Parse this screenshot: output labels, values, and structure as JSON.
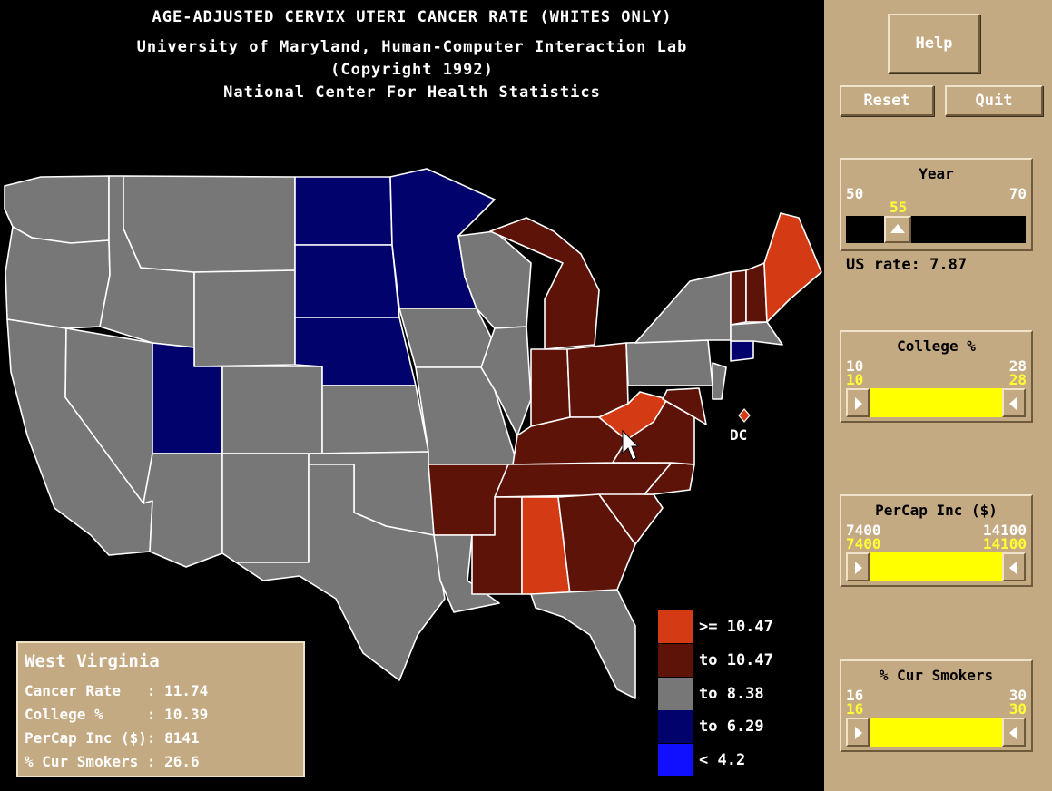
{
  "header": {
    "line1": "AGE-ADJUSTED CERVIX UTERI CANCER RATE (WHITES ONLY)",
    "line2": "University of Maryland, Human-Computer Interaction Lab",
    "line3": "(Copyright 1992)",
    "line4": "National Center For Health Statistics"
  },
  "buttons": {
    "help": "Help",
    "reset": "Reset",
    "quit": "Quit"
  },
  "year": {
    "title": "Year",
    "min": "50",
    "max": "70",
    "current": "55",
    "current_value": 55
  },
  "us_rate": "US rate: 7.87",
  "college": {
    "title": "College %",
    "min": "10",
    "max": "28",
    "sel_min": "10",
    "sel_max": "28"
  },
  "percap": {
    "title": "PerCap Inc ($)",
    "min": "7400",
    "max": "14100",
    "sel_min": "7400",
    "sel_max": "14100"
  },
  "smokers": {
    "title": "% Cur Smokers",
    "min": "16",
    "max": "30",
    "sel_min": "16",
    "sel_max": "30"
  },
  "selected_state": {
    "name": "West Virginia",
    "rows": [
      "Cancer Rate   : 11.74",
      "College %     : 10.39",
      "PerCap Inc ($): 8141",
      "% Cur Smokers : 26.6"
    ]
  },
  "legend": [
    {
      "label": ">= 10.47",
      "color": "#d43a14"
    },
    {
      "label": "to 10.47",
      "color": "#5e1308"
    },
    {
      "label": "to 8.38",
      "color": "#777777"
    },
    {
      "label": "to 6.29",
      "color": "#02026c"
    },
    {
      "label": "< 4.2",
      "color": "#1010ff"
    }
  ],
  "dc_label": "DC",
  "colors": {
    "highest": "#d43a14",
    "high": "#5e1308",
    "mid": "#777777",
    "low": "#02026c",
    "lowest": "#1010ff",
    "panel": "#c4aa83"
  }
}
